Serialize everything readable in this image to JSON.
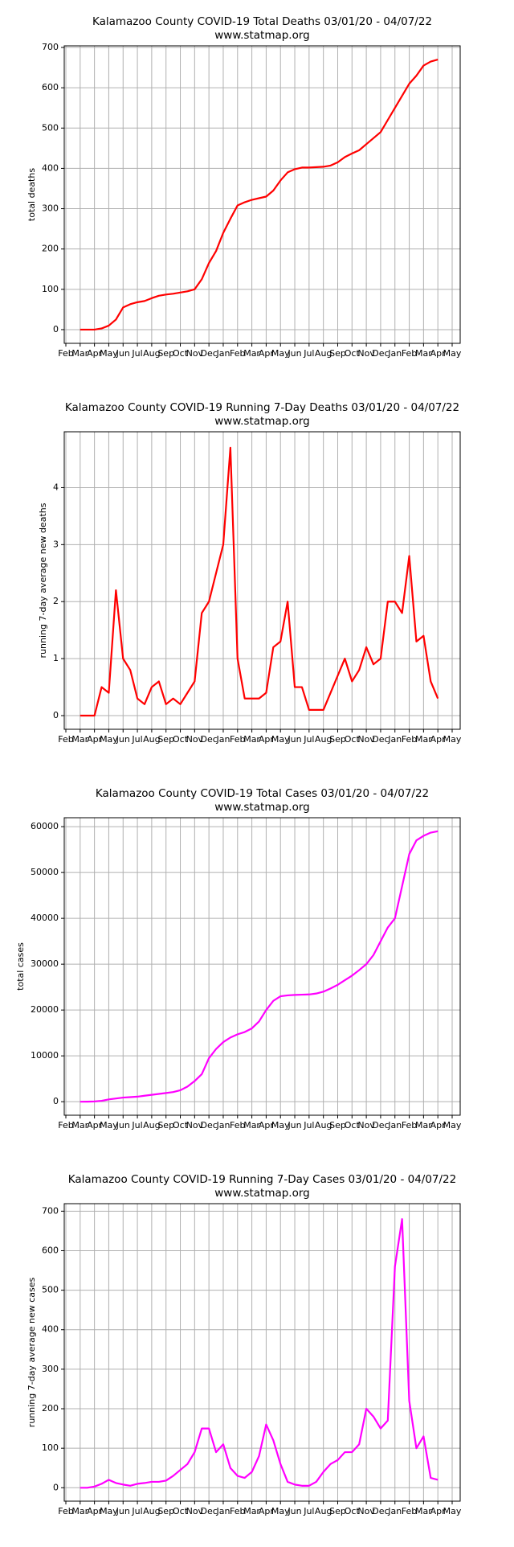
{
  "chart_data": [
    {
      "type": "line",
      "title": "Kalamazoo County COVID-19 Total Deaths 03/01/20 - 04/07/22",
      "subtitle": "www.statmap.org",
      "y_label": "total deaths",
      "categories": [
        "Feb",
        null,
        "Mar",
        null,
        "Apr",
        null,
        "May",
        null,
        "Jun",
        null,
        "Jul",
        null,
        "Aug",
        null,
        "Sep",
        null,
        "Oct",
        null,
        "Nov",
        null,
        "Dec",
        null,
        "Jan",
        null,
        "Feb",
        null,
        "Mar",
        null,
        "Apr",
        null,
        "May",
        null,
        "Jun",
        null,
        "Jul",
        null,
        "Aug",
        null,
        "Sep",
        null,
        "Oct",
        null,
        "Nov",
        null,
        "Dec",
        null,
        "Jan",
        null,
        "Feb",
        null,
        "Mar",
        null,
        "Apr",
        null,
        "May"
      ],
      "values": [
        null,
        null,
        0,
        0,
        0,
        3,
        10,
        25,
        55,
        63,
        68,
        71,
        78,
        84,
        87,
        89,
        92,
        95,
        100,
        125,
        165,
        195,
        240,
        275,
        308,
        316,
        322,
        326,
        330,
        345,
        370,
        390,
        398,
        402,
        402,
        403,
        404,
        407,
        415,
        428,
        437,
        445,
        460,
        475,
        490,
        520,
        550,
        580,
        610,
        630,
        655,
        665,
        670,
        null,
        null
      ],
      "color": "#ff0000",
      "ylim": [
        -34,
        704
      ],
      "yticks": [
        0,
        100,
        200,
        300,
        400,
        500,
        600,
        700
      ],
      "grid": true
    },
    {
      "type": "line",
      "title": "Kalamazoo County COVID-19 Running 7-Day Deaths 03/01/20 - 04/07/22",
      "subtitle": "www.statmap.org",
      "y_label": "running 7-day average new deaths",
      "categories": [
        "Feb",
        null,
        "Mar",
        null,
        "Apr",
        null,
        "May",
        null,
        "Jun",
        null,
        "Jul",
        null,
        "Aug",
        null,
        "Sep",
        null,
        "Oct",
        null,
        "Nov",
        null,
        "Dec",
        null,
        "Jan",
        null,
        "Feb",
        null,
        "Mar",
        null,
        "Apr",
        null,
        "May",
        null,
        "Jun",
        null,
        "Jul",
        null,
        "Aug",
        null,
        "Sep",
        null,
        "Oct",
        null,
        "Nov",
        null,
        "Dec",
        null,
        "Jan",
        null,
        "Feb",
        null,
        "Mar",
        null,
        "Apr",
        null,
        "May"
      ],
      "values": [
        null,
        null,
        0,
        0,
        0,
        0.5,
        0.4,
        2.2,
        1.0,
        0.8,
        0.3,
        0.2,
        0.5,
        0.6,
        0.2,
        0.3,
        0.2,
        0.4,
        0.6,
        1.8,
        2.0,
        2.5,
        3.0,
        4.7,
        1.0,
        0.3,
        0.3,
        0.3,
        0.4,
        1.2,
        1.3,
        2.0,
        0.5,
        0.5,
        0.1,
        0.1,
        0.1,
        0.4,
        0.7,
        1.0,
        0.6,
        0.8,
        1.2,
        0.9,
        1.0,
        2.0,
        2.0,
        1.8,
        2.8,
        1.3,
        1.4,
        0.6,
        0.3,
        null,
        null
      ],
      "color": "#ff0000",
      "ylim": [
        -0.24,
        4.98
      ],
      "yticks": [
        0,
        1,
        2,
        3,
        4
      ],
      "grid": true
    },
    {
      "type": "line",
      "title": "Kalamazoo County COVID-19 Total Cases 03/01/20 - 04/07/22",
      "subtitle": "www.statmap.org",
      "y_label": "total cases",
      "categories": [
        "Feb",
        null,
        "Mar",
        null,
        "Apr",
        null,
        "May",
        null,
        "Jun",
        null,
        "Jul",
        null,
        "Aug",
        null,
        "Sep",
        null,
        "Oct",
        null,
        "Nov",
        null,
        "Dec",
        null,
        "Jan",
        null,
        "Feb",
        null,
        "Mar",
        null,
        "Apr",
        null,
        "May",
        null,
        "Jun",
        null,
        "Jul",
        null,
        "Aug",
        null,
        "Sep",
        null,
        "Oct",
        null,
        "Nov",
        null,
        "Dec",
        null,
        "Jan",
        null,
        "Feb",
        null,
        "Mar",
        null,
        "Apr",
        null,
        "May"
      ],
      "values": [
        null,
        null,
        0,
        10,
        50,
        200,
        500,
        700,
        900,
        1000,
        1100,
        1300,
        1500,
        1700,
        1900,
        2100,
        2500,
        3300,
        4500,
        6000,
        9500,
        11500,
        13000,
        14000,
        14700,
        15200,
        16000,
        17500,
        20000,
        22000,
        23000,
        23200,
        23300,
        23350,
        23400,
        23600,
        24000,
        24700,
        25500,
        26500,
        27500,
        28700,
        30000,
        32000,
        35000,
        38000,
        40000,
        47000,
        54000,
        57000,
        58000,
        58700,
        59000,
        null,
        null
      ],
      "color": "#ff00ff",
      "ylim": [
        -2950,
        61950
      ],
      "yticks": [
        0,
        10000,
        20000,
        30000,
        40000,
        50000,
        60000
      ],
      "grid": true
    },
    {
      "type": "line",
      "title": "Kalamazoo County COVID-19 Running 7-Day Cases 03/01/20 - 04/07/22",
      "subtitle": "www.statmap.org",
      "y_label": "running 7-day average new cases",
      "categories": [
        "Feb",
        null,
        "Mar",
        null,
        "Apr",
        null,
        "May",
        null,
        "Jun",
        null,
        "Jul",
        null,
        "Aug",
        null,
        "Sep",
        null,
        "Oct",
        null,
        "Nov",
        null,
        "Dec",
        null,
        "Jan",
        null,
        "Feb",
        null,
        "Mar",
        null,
        "Apr",
        null,
        "May",
        null,
        "Jun",
        null,
        "Jul",
        null,
        "Aug",
        null,
        "Sep",
        null,
        "Oct",
        null,
        "Nov",
        null,
        "Dec",
        null,
        "Jan",
        null,
        "Feb",
        null,
        "Mar",
        null,
        "Apr",
        null,
        "May"
      ],
      "values": [
        null,
        null,
        0,
        0,
        3,
        10,
        20,
        12,
        8,
        5,
        10,
        12,
        15,
        15,
        18,
        30,
        45,
        60,
        90,
        150,
        150,
        90,
        110,
        50,
        30,
        25,
        40,
        80,
        160,
        120,
        60,
        15,
        8,
        5,
        5,
        15,
        40,
        60,
        70,
        90,
        90,
        110,
        200,
        180,
        150,
        170,
        560,
        680,
        220,
        100,
        130,
        25,
        20,
        null,
        null
      ],
      "color": "#ff00ff",
      "ylim": [
        -34,
        719
      ],
      "yticks": [
        0,
        100,
        200,
        300,
        400,
        500,
        600,
        700
      ],
      "grid": true
    }
  ]
}
